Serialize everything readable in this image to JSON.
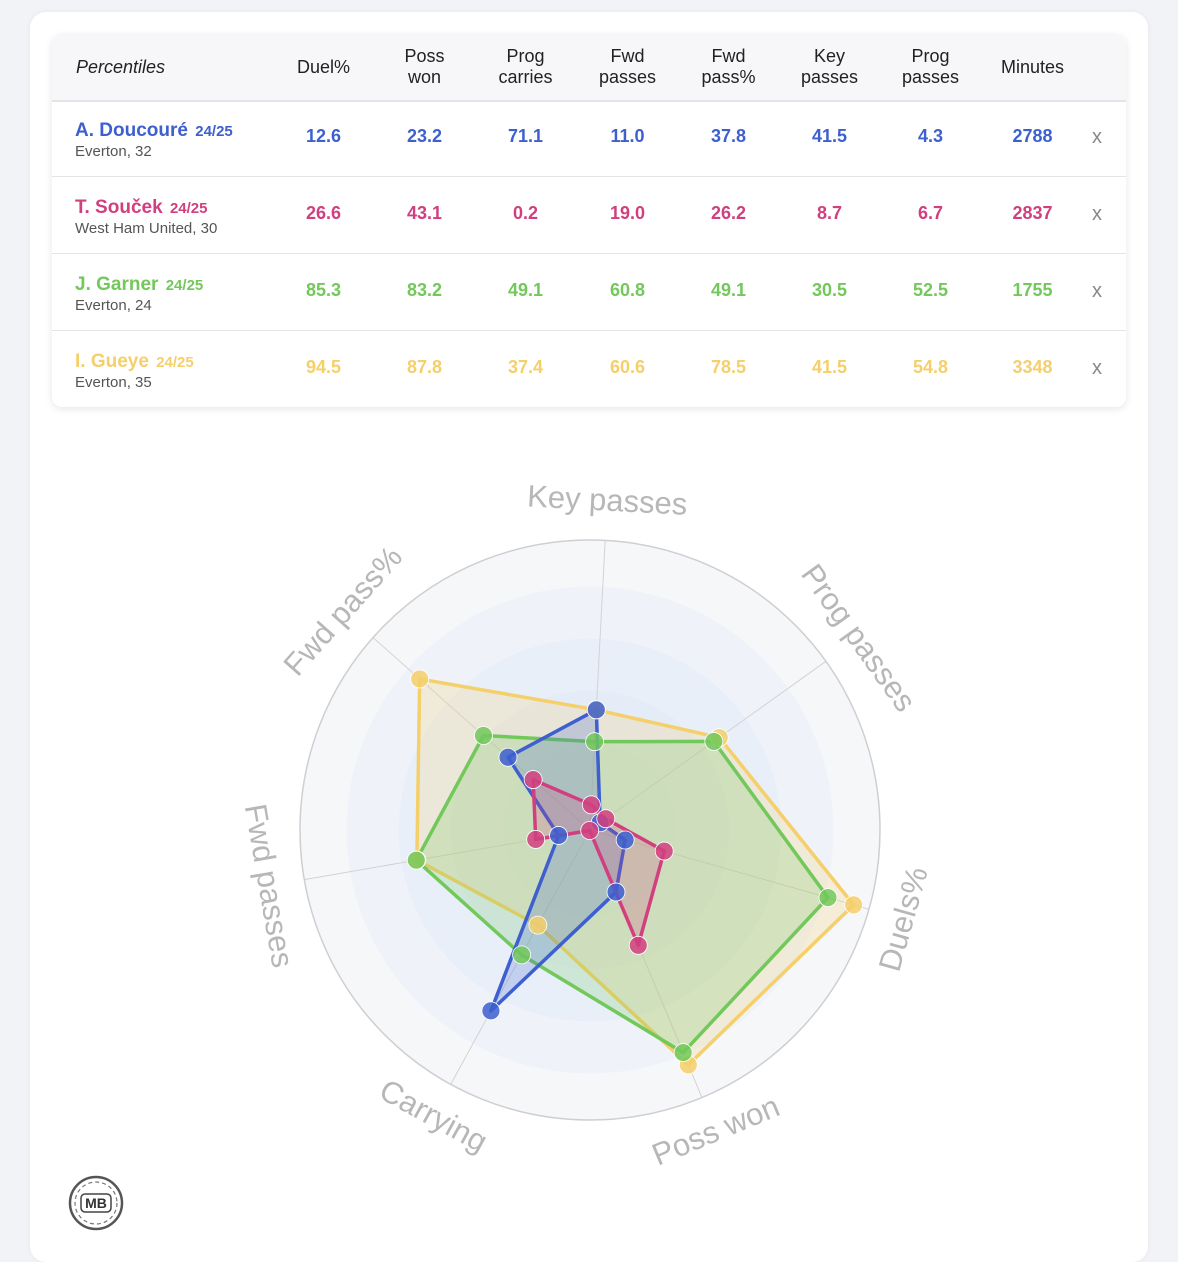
{
  "table": {
    "header_label": "Percentiles",
    "columns": [
      {
        "line1": "Duel%",
        "line2": ""
      },
      {
        "line1": "Poss",
        "line2": "won"
      },
      {
        "line1": "Prog",
        "line2": "carries"
      },
      {
        "line1": "Fwd",
        "line2": "passes"
      },
      {
        "line1": "Fwd",
        "line2": "pass%"
      },
      {
        "line1": "Key",
        "line2": "passes"
      },
      {
        "line1": "Prog",
        "line2": "passes"
      },
      {
        "line1": "Minutes",
        "line2": ""
      }
    ],
    "remove_label": "x",
    "rows": [
      {
        "name": "A. Doucouré",
        "season": "24/25",
        "club": "Everton, 32",
        "color": "#3d5fcf",
        "values": [
          "12.6",
          "23.2",
          "71.1",
          "11.0",
          "37.8",
          "41.5",
          "4.3",
          "2788"
        ]
      },
      {
        "name": "T. Souček",
        "season": "24/25",
        "club": "West Ham United, 30",
        "color": "#d13f7f",
        "values": [
          "26.6",
          "43.1",
          "0.2",
          "19.0",
          "26.2",
          "8.7",
          "6.7",
          "2837"
        ]
      },
      {
        "name": "J. Garner",
        "season": "24/25",
        "club": "Everton, 24",
        "color": "#72c85a",
        "values": [
          "85.3",
          "83.2",
          "49.1",
          "60.8",
          "49.1",
          "30.5",
          "52.5",
          "1755"
        ]
      },
      {
        "name": "I. Gueye",
        "season": "24/25",
        "club": "Everton, 35",
        "color": "#f5cf6a",
        "values": [
          "94.5",
          "87.8",
          "37.4",
          "60.6",
          "78.5",
          "41.5",
          "54.8",
          "3348"
        ]
      }
    ]
  },
  "chart_data": {
    "type": "radar",
    "axes": [
      "Key passes",
      "Prog passes",
      "Duels%",
      "Poss won",
      "Carrying",
      "Fwd passes",
      "Fwd pass%"
    ],
    "range": [
      0,
      100
    ],
    "grid": true,
    "series": [
      {
        "name": "A. Doucouré",
        "color": "#3d5fcf",
        "values": [
          41.5,
          4.3,
          12.6,
          23.2,
          71.1,
          11.0,
          37.8
        ]
      },
      {
        "name": "T. Souček",
        "color": "#d13f7f",
        "values": [
          8.7,
          6.7,
          26.6,
          43.1,
          0.2,
          19.0,
          26.2
        ]
      },
      {
        "name": "J. Garner",
        "color": "#72c85a",
        "values": [
          30.5,
          52.5,
          85.3,
          83.2,
          49.1,
          60.8,
          49.1
        ]
      },
      {
        "name": "I. Gueye",
        "color": "#f5cf6a",
        "values": [
          41.5,
          54.8,
          94.5,
          87.8,
          37.4,
          60.6,
          78.5
        ]
      }
    ]
  },
  "logo": {
    "text": "MB"
  }
}
